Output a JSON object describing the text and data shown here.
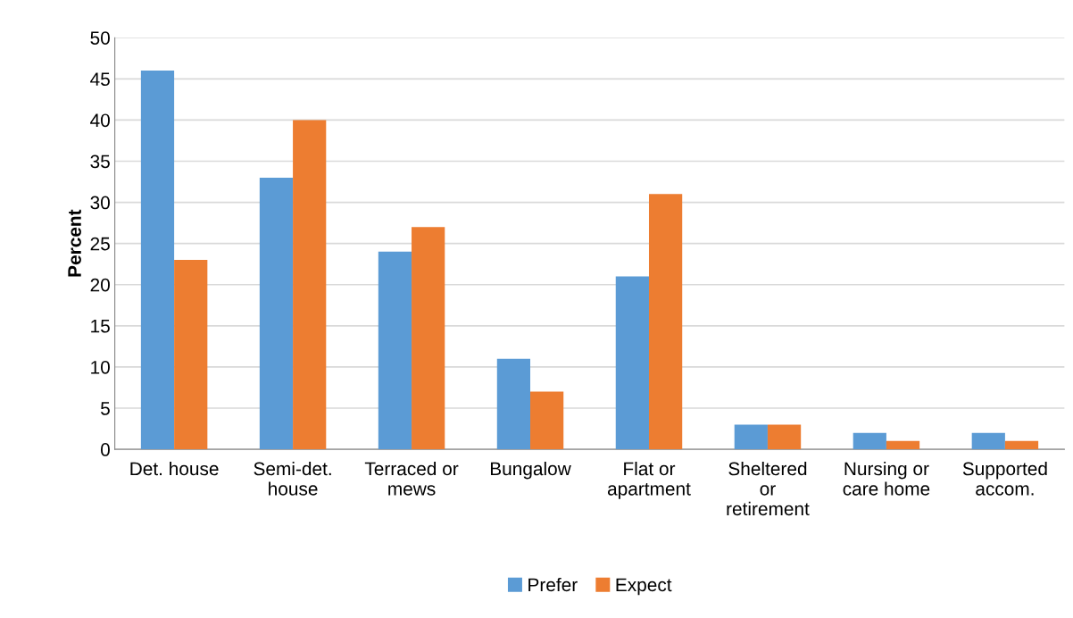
{
  "chart_data": {
    "type": "bar",
    "ylabel": "Percent",
    "categories": [
      "Det. house",
      "Semi-det.\nhouse",
      "Terraced or\nmews",
      "Bungalow",
      "Flat or\napartment",
      "Sheltered\nor\nretirement",
      "Nursing or\ncare home",
      "Supported\naccom."
    ],
    "series": [
      {
        "name": "Prefer",
        "color": "#5b9bd5",
        "values": [
          46,
          33,
          24,
          11,
          21,
          3,
          2,
          2
        ]
      },
      {
        "name": "Expect",
        "color": "#ed7d31",
        "values": [
          23,
          40,
          27,
          7,
          31,
          3,
          1,
          1
        ]
      }
    ],
    "ylim": [
      0,
      50
    ],
    "yticks": [
      0,
      5,
      10,
      15,
      20,
      25,
      30,
      35,
      40,
      45,
      50
    ],
    "grid": "y",
    "legend": "bottom"
  }
}
